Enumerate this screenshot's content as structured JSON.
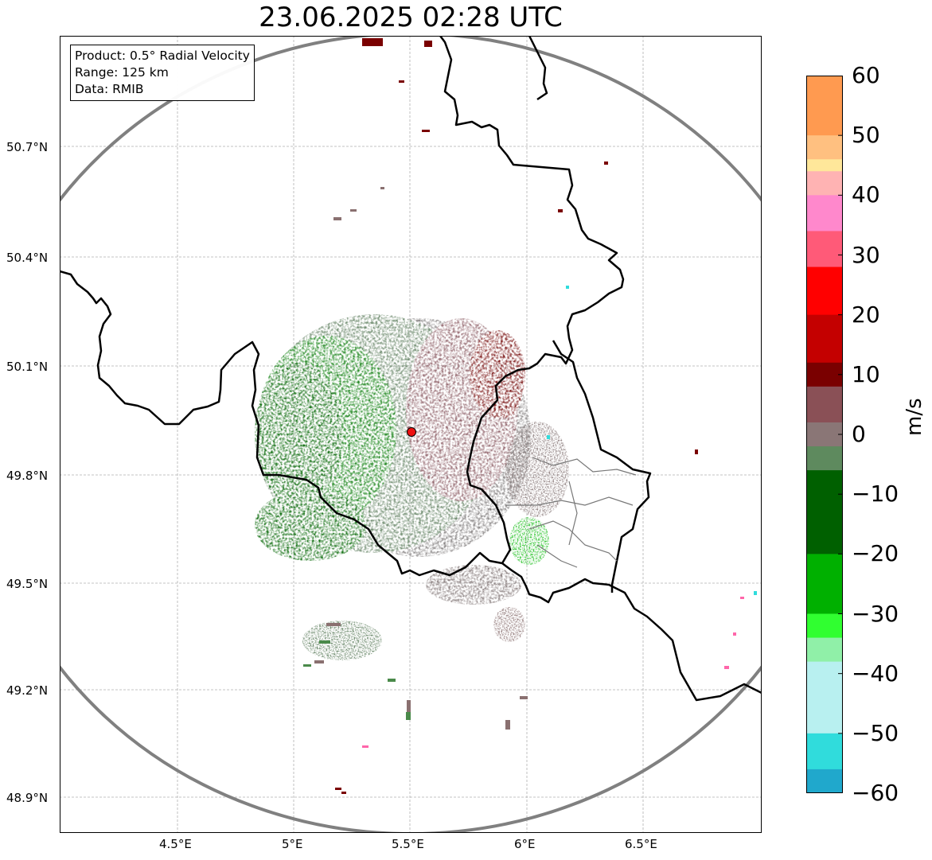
{
  "title": "23.06.2025 02:28 UTC",
  "info": {
    "product": "Product: 0.5° Radial Velocity",
    "range": "Range: 125 km",
    "data": "Data: RMIB"
  },
  "map": {
    "radar_site": {
      "lon": 5.505,
      "lat": 49.914
    },
    "range_km": 125,
    "lon_ticks": [
      "4.5°E",
      "5°E",
      "5.5°E",
      "6°E",
      "6.5°E"
    ],
    "lat_ticks": [
      "50.7°N",
      "50.4°N",
      "50.1°N",
      "49.8°N",
      "49.5°N",
      "49.2°N",
      "48.9°N"
    ],
    "colors": {
      "border": "#000000",
      "range_ring": "#808080",
      "grid": "#b0b0b0",
      "inbound_strong": "#006400",
      "inbound_weak": "#5f7f5f",
      "near_zero": "#8c7a7a",
      "outbound_weak": "#8c5a62",
      "outbound_strong": "#7a0000",
      "radar_marker": "#ee1111"
    }
  },
  "colorbar": {
    "label": "m/s",
    "min": -60,
    "max": 60,
    "ticks": [
      "60",
      "50",
      "40",
      "30",
      "20",
      "10",
      "0",
      "−10",
      "−20",
      "−30",
      "−40",
      "−50",
      "−60"
    ],
    "stops": [
      {
        "value": 60,
        "color": "#ff9a50"
      },
      {
        "value": 50,
        "color": "#ffc080"
      },
      {
        "value": 46,
        "color": "#ffe79a"
      },
      {
        "value": 44,
        "color": "#ffb3b3"
      },
      {
        "value": 40,
        "color": "#ff88cc"
      },
      {
        "value": 34,
        "color": "#ff5a78"
      },
      {
        "value": 28,
        "color": "#ff0000"
      },
      {
        "value": 20,
        "color": "#c40000"
      },
      {
        "value": 12,
        "color": "#7a0000"
      },
      {
        "value": 8,
        "color": "#8a5056"
      },
      {
        "value": 2,
        "color": "#8a7676"
      },
      {
        "value": -2,
        "color": "#5e8a5e"
      },
      {
        "value": -6,
        "color": "#006000"
      },
      {
        "value": -20,
        "color": "#00b000"
      },
      {
        "value": -30,
        "color": "#30ff30"
      },
      {
        "value": -34,
        "color": "#90f0a8"
      },
      {
        "value": -38,
        "color": "#b8f0f0"
      },
      {
        "value": -50,
        "color": "#30dcdc"
      },
      {
        "value": -56,
        "color": "#20a8cc"
      },
      {
        "value": -60,
        "color": "#1e7ec0"
      }
    ]
  }
}
